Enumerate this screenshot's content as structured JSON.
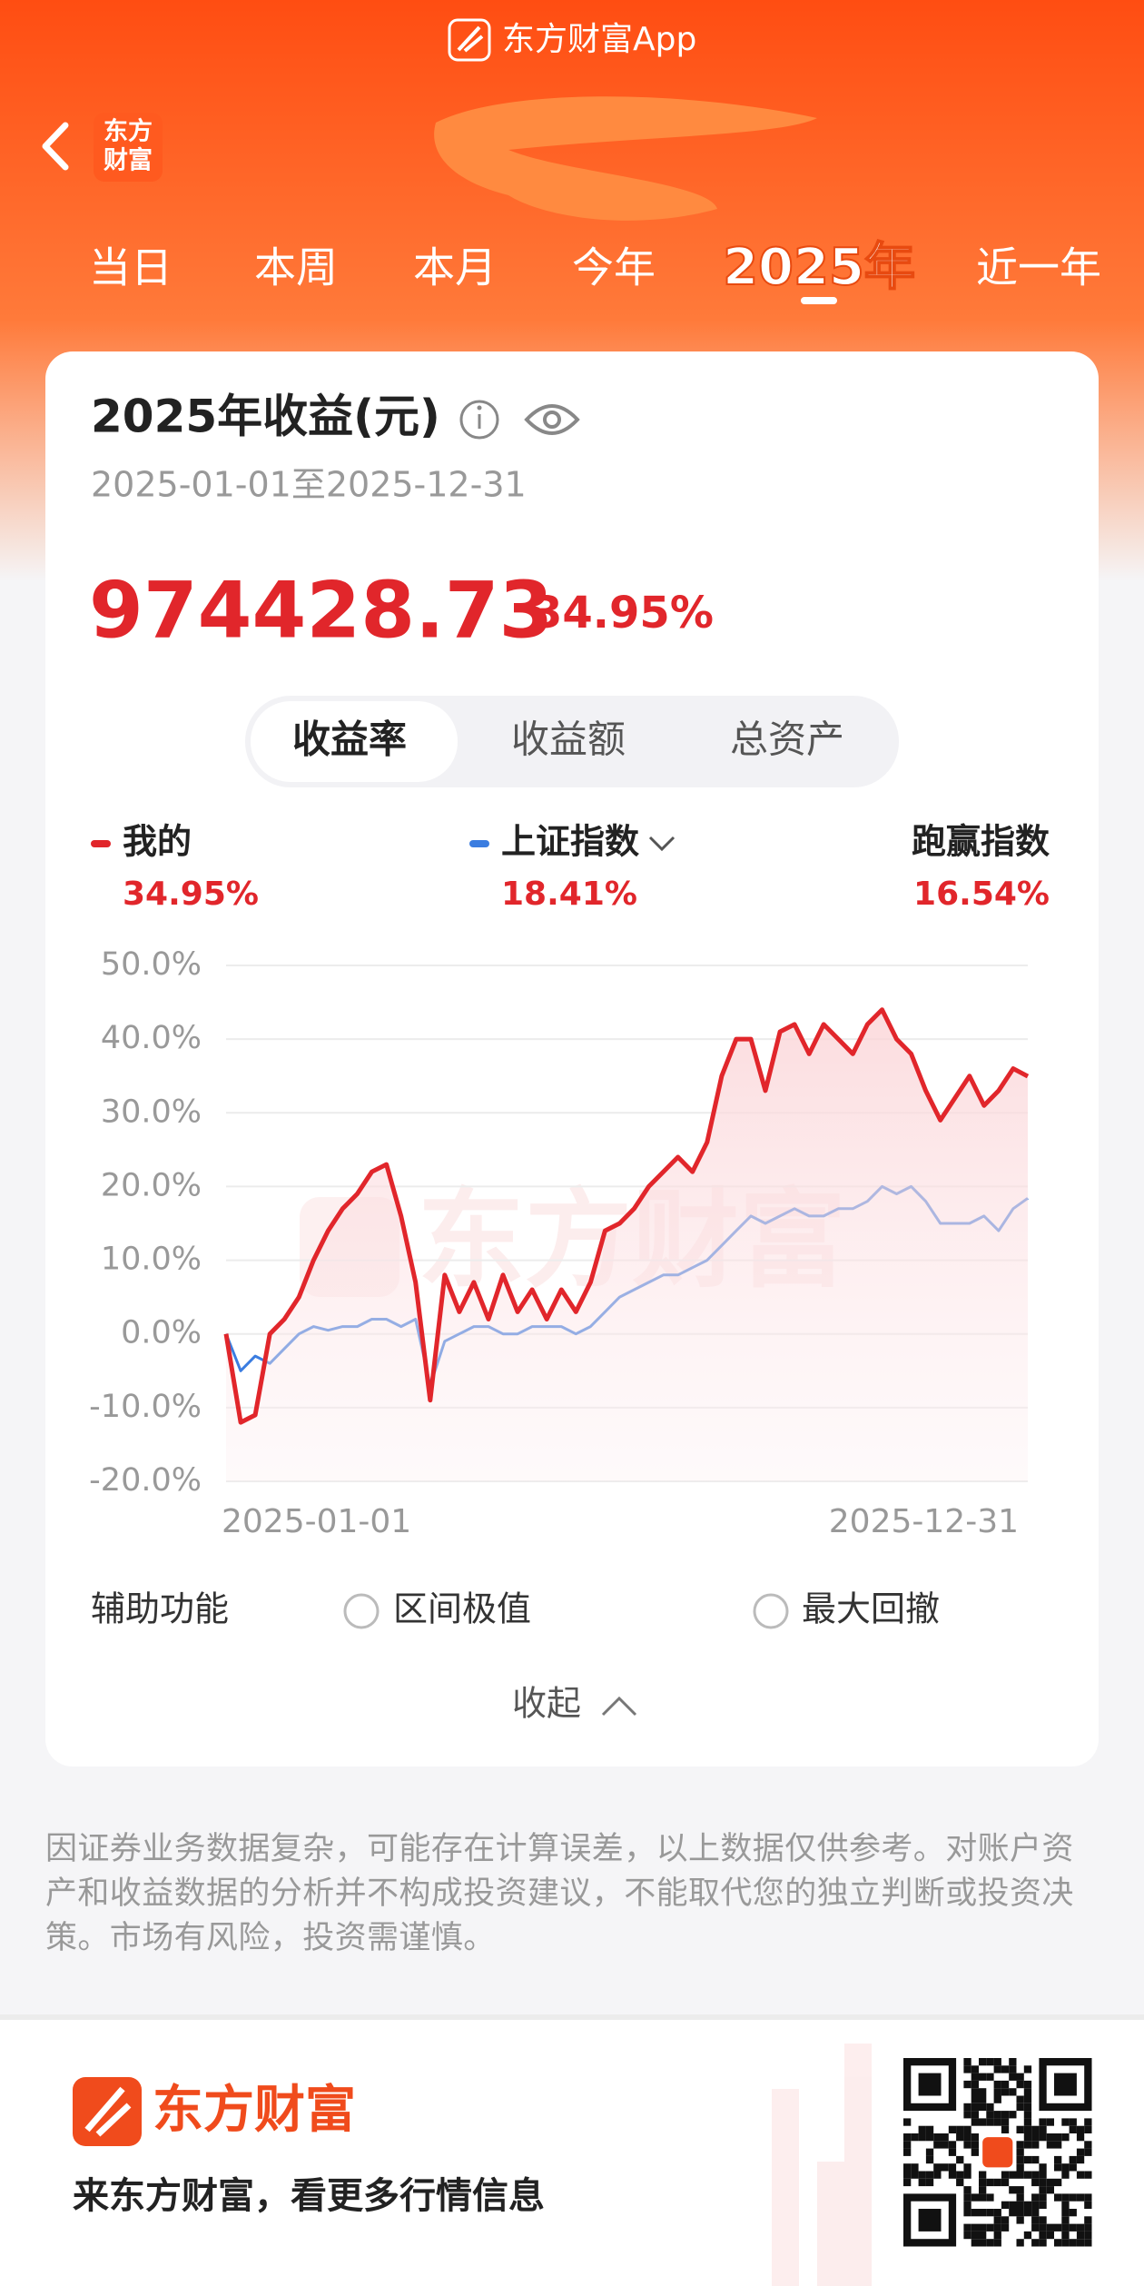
{
  "banner": "东方财富App",
  "back_logo": [
    "东方",
    "财富"
  ],
  "tabs": [
    {
      "label": "当日",
      "active": false
    },
    {
      "label": "本周",
      "active": false
    },
    {
      "label": "本月",
      "active": false
    },
    {
      "label": "今年",
      "active": false
    },
    {
      "label": "2025年",
      "active": true
    },
    {
      "label": "近一年",
      "active": false
    }
  ],
  "card": {
    "title": "2025年收益(元)",
    "period": "2025-01-01至2025-12-31",
    "amount": "974428.73",
    "rate": "34.95%",
    "segments": [
      {
        "label": "收益率",
        "active": true
      },
      {
        "label": "收益额",
        "active": false
      },
      {
        "label": "总资产",
        "active": false
      }
    ],
    "aux_title": "辅助功能",
    "aux_options": [
      "区间极值",
      "最大回撤"
    ],
    "collapse": "收起"
  },
  "chart_data": {
    "type": "line",
    "watermark": "东方财富",
    "categories": [
      "2025-01-01",
      null,
      null,
      null,
      null,
      null,
      null,
      null,
      null,
      null,
      null,
      null,
      null,
      null,
      null,
      null,
      null,
      null,
      null,
      null,
      null,
      null,
      null,
      null,
      null,
      null,
      null,
      null,
      null,
      null,
      null,
      null,
      null,
      null,
      null,
      null,
      null,
      null,
      null,
      null,
      null,
      null,
      null,
      null,
      null,
      null,
      null,
      null,
      null,
      null,
      null,
      null,
      null,
      null,
      null,
      "2025-12-31"
    ],
    "series": [
      {
        "name": "我的",
        "color": "#e1262b",
        "summary": "34.95%",
        "fill": true,
        "values": [
          0,
          -12,
          -11,
          0,
          2,
          5,
          10,
          14,
          17,
          19,
          22,
          23,
          16,
          7,
          -9,
          8,
          3,
          7,
          2,
          8,
          3,
          6,
          2,
          6,
          3,
          7,
          14,
          15,
          17,
          20,
          22,
          24,
          22,
          26,
          35,
          40,
          40,
          33,
          41,
          42,
          38,
          42,
          40,
          38,
          42,
          44,
          40,
          38,
          33,
          29,
          32,
          35,
          31,
          33,
          36,
          34.95
        ]
      },
      {
        "name": "上证指数",
        "color": "#3b7de0",
        "summary": "18.41%",
        "fill": false,
        "values": [
          0,
          -5,
          -3,
          -4,
          -2,
          0,
          1,
          0.5,
          1,
          1,
          2,
          2,
          1,
          2,
          -7,
          -1,
          0,
          1,
          1,
          0,
          0,
          1,
          1,
          1,
          0,
          1,
          3,
          5,
          6,
          7,
          8,
          8,
          9,
          10,
          12,
          14,
          16,
          15,
          16,
          17,
          16,
          16,
          17,
          17,
          18,
          20,
          19,
          20,
          18,
          15,
          15,
          15,
          16,
          14,
          17,
          18.41
        ]
      }
    ],
    "excess": {
      "label": "跑赢指数",
      "value": "16.54%"
    },
    "ylim": [
      -20,
      50
    ],
    "yticks": [
      {
        "value": -20,
        "label": "-20.0%"
      },
      {
        "value": -10,
        "label": "-10.0%"
      },
      {
        "value": 0,
        "label": "0.0%"
      },
      {
        "value": 10,
        "label": "10.0%"
      },
      {
        "value": 20,
        "label": "20.0%"
      },
      {
        "value": 30,
        "label": "30.0%"
      },
      {
        "value": 40,
        "label": "40.0%"
      },
      {
        "value": 50,
        "label": "50.0%"
      }
    ],
    "grid": true
  },
  "disclaimer": "因证券业务数据复杂，可能存在计算误差，以上数据仅供参考。对账户资产和收益数据的分析并不构成投资建议，不能取代您的独立判断或投资决策。市场有风险，投资需谨慎。",
  "footer": {
    "brand": "东方财富",
    "slogan": "来东方财富，看更多行情信息"
  }
}
